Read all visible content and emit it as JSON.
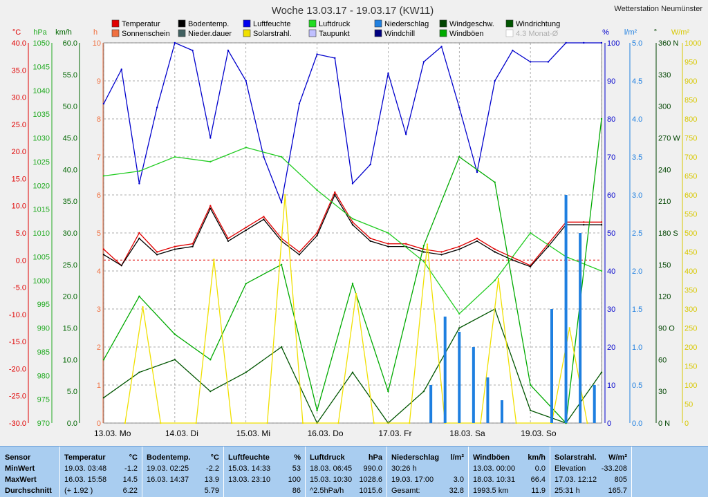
{
  "title": "Woche 13.03.17 - 19.03.17 (KW11)",
  "station": "Wetterstation Neumünster",
  "colors": {
    "temp": "#e00000",
    "boden": "#000000",
    "feuchte": "#0000cc",
    "druck": "#22cc22",
    "niederschlag": "#1e7fe0",
    "wind": "#005500",
    "richtung": "#004400",
    "sonne": "#f07040",
    "niederdauer": "#406060",
    "solar": "#f0e000",
    "taupunkt": "#9090ff",
    "windchill": "#000080",
    "boeen": "#00aa00"
  },
  "legend": [
    {
      "label": "Temperatur",
      "color": "#e00000"
    },
    {
      "label": "Bodentemp.",
      "color": "#000000"
    },
    {
      "label": "Luftfeuchte",
      "color": "#0000ee"
    },
    {
      "label": "Luftdruck",
      "color": "#22dd22"
    },
    {
      "label": "Niederschlag",
      "color": "#2080e0"
    },
    {
      "label": "Windgeschw.",
      "color": "#004400"
    },
    {
      "label": "Windrichtung",
      "color": "#005500"
    },
    {
      "label": "Sonnenschein",
      "color": "#f07040"
    },
    {
      "label": "Nieder.dauer",
      "color": "#406060"
    },
    {
      "label": "Solarstrahl.",
      "color": "#f0e000"
    },
    {
      "label": "Taupunkt",
      "color": "#c0c0ff"
    },
    {
      "label": "Windchill",
      "color": "#000080"
    },
    {
      "label": "Windböen",
      "color": "#00aa00"
    },
    {
      "label": "4.3 Monat-Ø",
      "color": "#c0c0c0",
      "disabled": true
    }
  ],
  "axes": {
    "temp": {
      "unit": "°C",
      "ticks": [
        "40.0",
        "35.0",
        "30.0",
        "25.0",
        "20.0",
        "15.0",
        "10.0",
        "5.0",
        "0.0",
        "-5.0",
        "-10.0",
        "-15.0",
        "-20.0",
        "-25.0",
        "-30.0"
      ]
    },
    "hpa": {
      "unit": "hPa",
      "ticks": [
        "1050",
        "1045",
        "1040",
        "1035",
        "1030",
        "1025",
        "1020",
        "1015",
        "1010",
        "1005",
        "1000",
        "995",
        "990",
        "985",
        "980",
        "975",
        "970"
      ]
    },
    "kmh": {
      "unit": "km/h",
      "ticks": [
        "60.0",
        "55.0",
        "50.0",
        "45.0",
        "40.0",
        "35.0",
        "30.0",
        "25.0",
        "20.0",
        "15.0",
        "10.0",
        "5.0",
        "0.0"
      ]
    },
    "h": {
      "unit": "h",
      "ticks": [
        "10",
        "9",
        "8",
        "7",
        "6",
        "5",
        "4",
        "3",
        "2",
        "1",
        "0"
      ]
    },
    "pct": {
      "unit": "%",
      "ticks": [
        "100",
        "90",
        "80",
        "70",
        "60",
        "50",
        "40",
        "30",
        "20",
        "10",
        "0"
      ]
    },
    "lm2": {
      "unit": "l/m²",
      "ticks": [
        "5.0",
        "4.5",
        "4.0",
        "3.5",
        "3.0",
        "2.5",
        "2.0",
        "1.5",
        "1.0",
        "0.5",
        "0.0"
      ]
    },
    "deg": {
      "unit": "°",
      "ticks": [
        "360 N",
        "330",
        "300",
        "270 W",
        "240",
        "210",
        "180 S",
        "150",
        "120",
        "90  O",
        "60",
        "30",
        "0   N"
      ]
    },
    "wm2": {
      "unit": "W/m²",
      "ticks": [
        "1000",
        "950",
        "900",
        "850",
        "800",
        "750",
        "700",
        "650",
        "600",
        "550",
        "500",
        "450",
        "400",
        "350",
        "300",
        "250",
        "200",
        "150",
        "100",
        "50",
        "0"
      ]
    }
  },
  "days": [
    "13.03.  Mo",
    "14.03.  Di",
    "15.03.  Mi",
    "16.03.  Do",
    "17.03.  Fr",
    "18.03.  Sa",
    "19.03.  So"
  ],
  "chart_data": {
    "type": "line",
    "x_unit": "Tag (13.03.–19.03.17)",
    "series": [
      {
        "name": "Temperatur",
        "unit": "°C",
        "x": [
          0,
          0.25,
          0.5,
          0.75,
          1,
          1.25,
          1.5,
          1.75,
          2,
          2.25,
          2.5,
          2.75,
          3,
          3.25,
          3.5,
          3.75,
          4,
          4.25,
          4.5,
          4.75,
          5,
          5.25,
          5.5,
          5.75,
          6,
          6.25,
          6.5,
          6.75,
          7
        ],
        "values": [
          2,
          -1,
          5,
          1.5,
          2.5,
          3,
          10,
          4,
          6,
          8,
          4,
          1.5,
          5,
          12.5,
          7,
          4,
          3,
          3,
          2,
          1.5,
          2.5,
          4,
          2,
          0.5,
          -1,
          3,
          7,
          7,
          7
        ]
      },
      {
        "name": "Bodentemp.",
        "unit": "°C",
        "x": [
          0,
          0.25,
          0.5,
          0.75,
          1,
          1.25,
          1.5,
          1.75,
          2,
          2.25,
          2.5,
          2.75,
          3,
          3.25,
          3.5,
          3.75,
          4,
          4.25,
          4.5,
          4.75,
          5,
          5.25,
          5.5,
          5.75,
          6,
          6.25,
          6.5,
          6.75,
          7
        ],
        "values": [
          1,
          -1,
          4,
          1,
          2,
          2.5,
          9.5,
          3.5,
          5.5,
          7.5,
          3.5,
          1,
          4.5,
          12,
          6.5,
          3.5,
          2.5,
          2.5,
          1.5,
          1,
          2,
          3.5,
          1.5,
          0,
          -1.2,
          2.5,
          6.5,
          6.5,
          6.5
        ]
      },
      {
        "name": "Luftfeuchte",
        "unit": "%",
        "x": [
          0,
          0.25,
          0.5,
          0.75,
          1,
          1.25,
          1.5,
          1.75,
          2,
          2.25,
          2.5,
          2.75,
          3,
          3.25,
          3.5,
          3.75,
          4,
          4.25,
          4.5,
          4.75,
          5,
          5.25,
          5.5,
          5.75,
          6,
          6.25,
          6.5,
          6.75,
          7
        ],
        "values": [
          84,
          93,
          63,
          83,
          100,
          98,
          75,
          98,
          90,
          70,
          58,
          84,
          97,
          96,
          63,
          68,
          92,
          76,
          95,
          99,
          83,
          66,
          90,
          98,
          95,
          95,
          100,
          100,
          100
        ]
      },
      {
        "name": "Luftdruck",
        "unit": "hPa",
        "x": [
          0,
          0.5,
          1,
          1.5,
          2,
          2.5,
          3,
          3.5,
          4,
          4.5,
          5,
          5.5,
          6,
          6.5,
          7
        ],
        "values": [
          1022,
          1023,
          1026,
          1025,
          1028,
          1026,
          1019,
          1013,
          1010,
          1004,
          993,
          1000,
          1010,
          1005,
          1002
        ]
      },
      {
        "name": "Windgeschw.",
        "unit": "km/h",
        "x": [
          0,
          0.5,
          1,
          1.5,
          2,
          2.5,
          3,
          3.5,
          4,
          4.5,
          5,
          5.5,
          6,
          6.5,
          7
        ],
        "values": [
          4,
          8,
          10,
          5,
          8,
          12,
          0,
          8,
          0,
          5,
          15,
          18,
          2,
          0,
          8
        ]
      },
      {
        "name": "Windböen",
        "unit": "km/h",
        "x": [
          0,
          0.5,
          1,
          1.5,
          2,
          2.5,
          3,
          3.5,
          4,
          4.5,
          5,
          5.5,
          6,
          6.5,
          7
        ],
        "values": [
          10,
          20,
          14,
          10,
          22,
          25,
          2,
          22,
          5,
          28,
          42,
          38,
          6,
          0,
          48
        ]
      },
      {
        "name": "Solarstrahl.",
        "unit": "W/m²",
        "x": [
          0.3,
          0.55,
          0.8,
          1.3,
          1.55,
          1.8,
          2.3,
          2.55,
          2.8,
          3.3,
          3.55,
          3.8,
          4.3,
          4.55,
          4.8,
          5.3,
          5.55,
          5.8,
          6.3,
          6.55,
          6.8
        ],
        "values": [
          0,
          305,
          0,
          0,
          430,
          0,
          0,
          600,
          0,
          0,
          340,
          0,
          0,
          470,
          0,
          0,
          380,
          0,
          0,
          250,
          0
        ]
      },
      {
        "name": "Niederschlag",
        "unit": "l/m²",
        "x": [
          4.6,
          4.8,
          5.0,
          5.2,
          5.4,
          5.6,
          6.3,
          6.5,
          6.7,
          6.9
        ],
        "values": [
          0.5,
          1.4,
          1.2,
          1.0,
          0.6,
          0.3,
          1.5,
          3.0,
          2.5,
          0.5
        ]
      }
    ],
    "ylim": {
      "temp": [
        -30,
        40
      ],
      "hpa": [
        970,
        1050
      ],
      "kmh": [
        0,
        60
      ],
      "h": [
        0,
        10
      ],
      "pct": [
        0,
        100
      ],
      "lm2": [
        0,
        5
      ],
      "deg": [
        0,
        360
      ],
      "wm2": [
        0,
        1000
      ]
    },
    "grid": true,
    "legend": "top"
  },
  "table": {
    "headers": [
      {
        "key": "sensor",
        "label": "Sensor",
        "unit": ""
      },
      {
        "key": "temp",
        "label": "Temperatur",
        "unit": "°C"
      },
      {
        "key": "boden",
        "label": "Bodentemp.",
        "unit": "°C"
      },
      {
        "key": "feuchte",
        "label": "Luftfeuchte",
        "unit": "%"
      },
      {
        "key": "druck",
        "label": "Luftdruck",
        "unit": "hPa"
      },
      {
        "key": "nied",
        "label": "Niederschlag",
        "unit": "l/m²"
      },
      {
        "key": "boeen",
        "label": "Windböen",
        "unit": "km/h"
      },
      {
        "key": "solar",
        "label": "Solarstrahl.",
        "unit": "W/m²"
      }
    ],
    "rows": [
      {
        "label": "MinWert",
        "temp": [
          "19.03.  03:48",
          "-1.2"
        ],
        "boden": [
          "19.03.  02:25",
          "-2.2"
        ],
        "feuchte": [
          "15.03.  14:33",
          "53"
        ],
        "druck": [
          "18.03.  06:45",
          "990.0"
        ],
        "nied": [
          "30:26 h",
          ""
        ],
        "boeen": [
          "13.03.  00:00",
          "0.0"
        ],
        "solar": [
          "Elevation",
          "-33.208"
        ]
      },
      {
        "label": "MaxWert",
        "temp": [
          "16.03.  15:58",
          "14.5"
        ],
        "boden": [
          "16.03.  14:37",
          "13.9"
        ],
        "feuchte": [
          "13.03.  23:10",
          "100"
        ],
        "druck": [
          "15.03.  10:30",
          "1028.6"
        ],
        "nied": [
          "19.03.  17:00",
          "3.0"
        ],
        "boeen": [
          "18.03.  10:31",
          "66.4"
        ],
        "solar": [
          "17.03.  12:12",
          "805"
        ]
      },
      {
        "label": "Durchschnitt",
        "temp": [
          "(+ 1.92 )",
          "6.22"
        ],
        "boden": [
          "",
          "5.79"
        ],
        "feuchte": [
          "",
          "86"
        ],
        "druck": [
          "^2.5hPa/h",
          "1015.6"
        ],
        "nied": [
          "Gesamt:",
          "32.8"
        ],
        "boeen": [
          "1993.5 km",
          "11.9"
        ],
        "solar": [
          "25:31 h",
          "165.7"
        ]
      }
    ]
  }
}
